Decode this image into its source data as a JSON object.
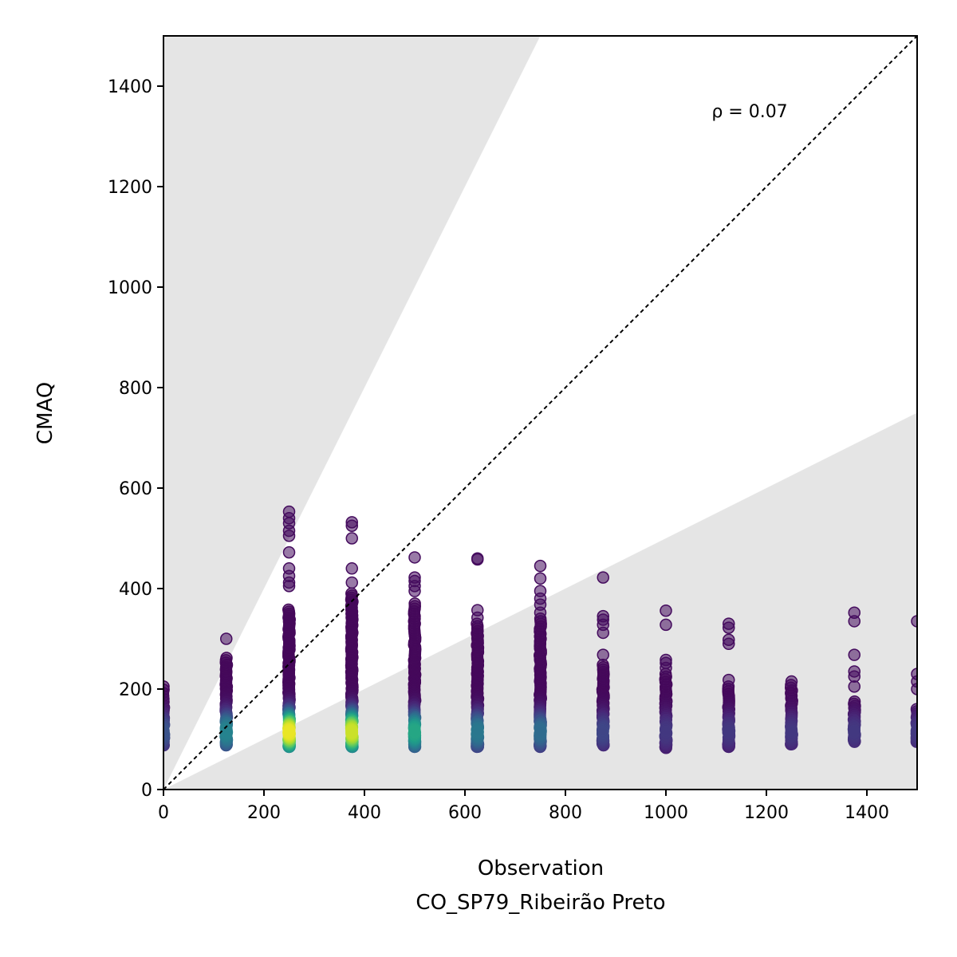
{
  "chart_data": {
    "type": "scatter",
    "title": "",
    "xlabel": "Observation",
    "xlabel_sub": "CO_SP79_Ribeirão Preto",
    "ylabel": "CMAQ",
    "xlim": [
      0,
      1500
    ],
    "ylim": [
      0,
      1500
    ],
    "x_ticks": [
      0,
      200,
      400,
      600,
      800,
      1000,
      1200,
      1400
    ],
    "y_ticks": [
      0,
      200,
      400,
      600,
      800,
      1000,
      1200,
      1400
    ],
    "annotation": "ρ = 0.07",
    "reference_line": "1:1",
    "shaded_band": {
      "upper_slope": 2.0,
      "lower_slope": 0.5,
      "color": "#e5e5e5"
    },
    "grid": false,
    "legend": "none",
    "colormap": "viridis",
    "columns": [
      {
        "x": 0,
        "ymin": 88,
        "ymax": 205,
        "n": 30,
        "peak": 0.25,
        "outliers": []
      },
      {
        "x": 125,
        "ymin": 88,
        "ymax": 262,
        "n": 60,
        "peak": 0.45,
        "outliers": [
          300
        ]
      },
      {
        "x": 250,
        "ymin": 85,
        "ymax": 358,
        "n": 110,
        "peak": 1.0,
        "outliers": [
          405,
          412,
          425,
          440,
          472,
          505,
          515,
          530,
          540,
          553
        ]
      },
      {
        "x": 375,
        "ymin": 85,
        "ymax": 390,
        "n": 120,
        "peak": 0.95,
        "outliers": [
          412,
          440,
          500,
          525,
          532
        ]
      },
      {
        "x": 500,
        "ymin": 85,
        "ymax": 370,
        "n": 90,
        "peak": 0.6,
        "outliers": [
          395,
          405,
          415,
          422,
          462
        ]
      },
      {
        "x": 625,
        "ymin": 85,
        "ymax": 330,
        "n": 80,
        "peak": 0.4,
        "outliers": [
          342,
          357,
          458,
          460
        ]
      },
      {
        "x": 750,
        "ymin": 85,
        "ymax": 340,
        "n": 80,
        "peak": 0.35,
        "outliers": [
          352,
          368,
          380,
          395,
          420,
          445
        ]
      },
      {
        "x": 875,
        "ymin": 88,
        "ymax": 248,
        "n": 55,
        "peak": 0.2,
        "outliers": [
          268,
          312,
          328,
          338,
          345,
          422
        ]
      },
      {
        "x": 1000,
        "ymin": 83,
        "ymax": 230,
        "n": 45,
        "peak": 0.15,
        "outliers": [
          242,
          252,
          258,
          328,
          356
        ]
      },
      {
        "x": 1125,
        "ymin": 85,
        "ymax": 205,
        "n": 40,
        "peak": 0.15,
        "outliers": [
          218,
          290,
          298,
          322,
          330
        ]
      },
      {
        "x": 1250,
        "ymin": 90,
        "ymax": 208,
        "n": 35,
        "peak": 0.15,
        "outliers": [
          215
        ]
      },
      {
        "x": 1375,
        "ymin": 95,
        "ymax": 175,
        "n": 30,
        "peak": 0.15,
        "outliers": [
          205,
          225,
          235,
          268,
          335,
          352
        ]
      },
      {
        "x": 1500,
        "ymin": 95,
        "ymax": 160,
        "n": 25,
        "peak": 0.15,
        "outliers": [
          200,
          215,
          230,
          335
        ]
      }
    ]
  }
}
